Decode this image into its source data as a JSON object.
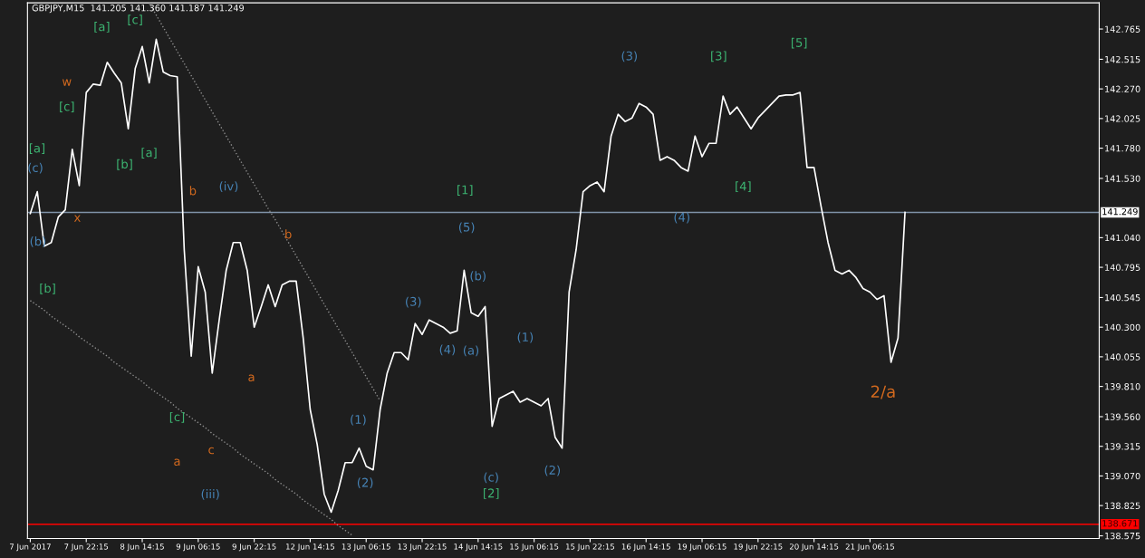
{
  "chart_data": {
    "type": "line",
    "title": "GBPJPY,M15  141.205 141.360 141.187 141.249",
    "categories": [
      "7 Jun 2017",
      null,
      null,
      null,
      null,
      null,
      null,
      null,
      "7 Jun 22:15",
      null,
      null,
      null,
      null,
      null,
      null,
      null,
      "8 Jun 14:15",
      null,
      null,
      null,
      null,
      null,
      null,
      null,
      "9 Jun 06:15",
      null,
      null,
      null,
      null,
      null,
      null,
      null,
      "9 Jun 22:15",
      null,
      null,
      null,
      null,
      null,
      null,
      null,
      "12 Jun 14:15",
      null,
      null,
      null,
      null,
      null,
      null,
      null,
      "13 Jun 06:15",
      null,
      null,
      null,
      null,
      null,
      null,
      null,
      "13 Jun 22:15",
      null,
      null,
      null,
      null,
      null,
      null,
      null,
      "14 Jun 14:15",
      null,
      null,
      null,
      null,
      null,
      null,
      null,
      "15 Jun 06:15",
      null,
      null,
      null,
      null,
      null,
      null,
      null,
      "15 Jun 22:15",
      null,
      null,
      null,
      null,
      null,
      null,
      null,
      "16 Jun 14:15",
      null,
      null,
      null,
      null,
      null,
      null,
      null,
      "19 Jun 06:15",
      null,
      null,
      null,
      null,
      null,
      null,
      null,
      "19 Jun 22:15",
      null,
      null,
      null,
      null,
      null,
      null,
      null,
      "20 Jun 14:15",
      null,
      null,
      null,
      null,
      null,
      null,
      null,
      "21 Jun 06:15",
      null,
      null,
      null,
      null,
      null,
      null,
      null,
      null,
      null,
      null,
      null,
      null,
      null,
      null,
      null,
      null,
      null,
      null,
      null,
      null,
      null,
      null,
      null,
      null,
      null,
      null,
      null,
      null,
      null,
      null,
      null,
      null
    ],
    "ylim": [
      138.553,
      142.982
    ],
    "yticks": [
      {
        "value": 142.765,
        "label": "142.765"
      },
      {
        "value": 142.515,
        "label": "142.515"
      },
      {
        "value": 142.27,
        "label": "142.270"
      },
      {
        "value": 142.025,
        "label": "142.025"
      },
      {
        "value": 141.78,
        "label": "141.780"
      },
      {
        "value": 141.53,
        "label": "141.530"
      },
      {
        "value": 141.04,
        "label": "141.040"
      },
      {
        "value": 140.795,
        "label": "140.795"
      },
      {
        "value": 140.545,
        "label": "140.545"
      },
      {
        "value": 140.3,
        "label": "140.300"
      },
      {
        "value": 140.055,
        "label": "140.055"
      },
      {
        "value": 139.81,
        "label": "139.810"
      },
      {
        "value": 139.56,
        "label": "139.560"
      },
      {
        "value": 139.315,
        "label": "139.315"
      },
      {
        "value": 139.07,
        "label": "139.070"
      },
      {
        "value": 138.825,
        "label": "138.825"
      },
      {
        "value": 138.575,
        "label": "138.575"
      }
    ],
    "grid": false,
    "series": [
      {
        "color": "#ffffff",
        "line_style": "solid",
        "values": [
          141.24,
          141.42,
          140.97,
          141.0,
          141.21,
          141.27,
          141.77,
          141.47,
          142.24,
          142.31,
          142.3,
          142.49,
          142.4,
          142.32,
          141.94,
          142.44,
          142.62,
          142.32,
          142.68,
          142.41,
          142.38,
          142.37,
          140.94,
          140.06,
          140.8,
          140.59,
          139.92,
          140.36,
          140.77,
          141.0,
          141.0,
          140.77,
          140.3,
          140.47,
          140.65,
          140.47,
          140.65,
          140.68,
          140.68,
          140.21,
          139.62,
          139.33,
          138.92,
          138.77,
          138.95,
          139.18,
          139.18,
          139.3,
          139.15,
          139.12,
          139.62,
          139.92,
          140.09,
          140.09,
          140.03,
          140.33,
          140.24,
          140.36,
          140.33,
          140.3,
          140.25,
          140.27,
          140.77,
          140.42,
          140.39,
          140.47,
          139.48,
          139.71,
          139.74,
          139.77,
          139.68,
          139.71,
          139.68,
          139.65,
          139.71,
          139.39,
          139.3,
          140.59,
          140.94,
          141.42,
          141.47,
          141.5,
          141.42,
          141.88,
          142.06,
          142.0,
          142.03,
          142.15,
          142.12,
          142.06,
          141.68,
          141.71,
          141.68,
          141.62,
          141.59,
          141.88,
          141.71,
          141.82,
          141.82,
          142.21,
          142.06,
          142.12,
          142.03,
          141.94,
          142.03,
          142.09,
          142.15,
          142.21,
          142.22,
          142.22,
          142.24,
          141.62,
          141.62,
          141.3,
          141.0,
          140.77,
          140.74,
          140.77,
          140.71,
          140.62,
          140.59,
          140.53,
          140.56,
          140.01,
          140.21,
          141.249,
          null,
          null,
          null,
          null,
          null,
          null,
          null,
          null,
          null,
          null,
          null,
          null,
          null,
          null,
          null,
          null,
          null,
          null,
          null,
          null,
          null,
          null,
          null,
          null,
          null,
          null,
          null
        ]
      },
      {
        "color": "#8c8c8c",
        "line_style": "dotted",
        "values": [
          null,
          null,
          null,
          null,
          null,
          null,
          null,
          null,
          null,
          null,
          null,
          null,
          null,
          null,
          null,
          null,
          null,
          142.98,
          142.88,
          142.78,
          142.68,
          142.58,
          142.48,
          142.38,
          142.28,
          142.18,
          142.08,
          141.98,
          141.88,
          141.78,
          141.68,
          141.58,
          141.48,
          141.38,
          141.28,
          141.19,
          141.09,
          140.99,
          140.89,
          140.79,
          140.69,
          140.59,
          140.49,
          140.39,
          140.29,
          140.19,
          140.09,
          139.99,
          139.89,
          139.79,
          139.69,
          null,
          null,
          null,
          null,
          null,
          null,
          null,
          null,
          null,
          null,
          null,
          null,
          null,
          null,
          null,
          null,
          null,
          null,
          null,
          null,
          null,
          null,
          null,
          null,
          null,
          null,
          null,
          null,
          null,
          null,
          null,
          null,
          null,
          null,
          null,
          null,
          null,
          null,
          null,
          null,
          null,
          null,
          null,
          null,
          null,
          null,
          null,
          null,
          null,
          null,
          null,
          null,
          null,
          null,
          null,
          null,
          null,
          null,
          null,
          null,
          null,
          null,
          null,
          null,
          null,
          null,
          null,
          null,
          null,
          null,
          null,
          null,
          null,
          null,
          null,
          null,
          null,
          null,
          null,
          null,
          null,
          null,
          null,
          null,
          null,
          null,
          null,
          null,
          null,
          null,
          null,
          null,
          null,
          null,
          null,
          null,
          null,
          null,
          null,
          null,
          null,
          null
        ]
      },
      {
        "color": "#8c8c8c",
        "line_style": "dotted",
        "values": [
          140.52,
          140.48,
          140.44,
          140.39,
          140.35,
          140.31,
          140.27,
          140.22,
          140.18,
          140.14,
          140.1,
          140.06,
          140.01,
          139.97,
          139.93,
          139.89,
          139.85,
          139.8,
          139.76,
          139.72,
          139.68,
          139.63,
          139.59,
          139.55,
          139.51,
          139.47,
          139.42,
          139.38,
          139.34,
          139.3,
          139.25,
          139.21,
          139.17,
          139.13,
          139.09,
          139.04,
          139.0,
          138.96,
          138.92,
          138.87,
          138.83,
          138.79,
          138.75,
          138.71,
          138.66,
          138.62,
          138.58,
          null,
          null,
          null,
          null,
          null,
          null,
          null,
          null,
          null,
          null,
          null,
          null,
          null,
          null,
          null,
          null,
          null,
          null,
          null,
          null,
          null,
          null,
          null,
          null,
          null,
          null,
          null,
          null,
          null,
          null,
          null,
          null,
          null,
          null,
          null,
          null,
          null,
          null,
          null,
          null,
          null,
          null,
          null,
          null,
          null,
          null,
          null,
          null,
          null,
          null,
          null,
          null,
          null,
          null,
          null,
          null,
          null,
          null,
          null,
          null,
          null,
          null,
          null,
          null,
          null,
          null,
          null,
          null,
          null,
          null,
          null,
          null,
          null,
          null,
          null,
          null,
          null,
          null,
          null,
          null,
          null,
          null,
          null,
          null,
          null,
          null,
          null,
          null,
          null,
          null,
          null,
          null,
          null,
          null,
          null,
          null,
          null,
          null,
          null,
          null,
          null,
          null,
          null,
          null,
          null,
          null
        ]
      }
    ],
    "ref_lines": [
      {
        "axis": "y",
        "value": 141.249,
        "label": "141.249",
        "color": "#7f93a8"
      },
      {
        "axis": "y",
        "value": 138.671,
        "label": "138.671",
        "color": "#ff0000"
      }
    ],
    "annotations": [
      "w",
      "[c]",
      "[a]",
      "(c)",
      "(b)",
      "x",
      "[b]",
      "[a]",
      "[c]",
      "[b]",
      "[a]",
      "b",
      "(iv)",
      "b",
      "a",
      "[c]",
      "a",
      "c",
      "(iii)",
      "(1)",
      "(2)",
      "(3)",
      "(4)",
      "[1]",
      "(5)",
      "(b)",
      "(a)",
      "(c)",
      "[2]",
      "(1)",
      "(2)",
      "(3)",
      "[3]",
      "(4)",
      "[4]",
      "[5]",
      "2/a"
    ]
  }
}
